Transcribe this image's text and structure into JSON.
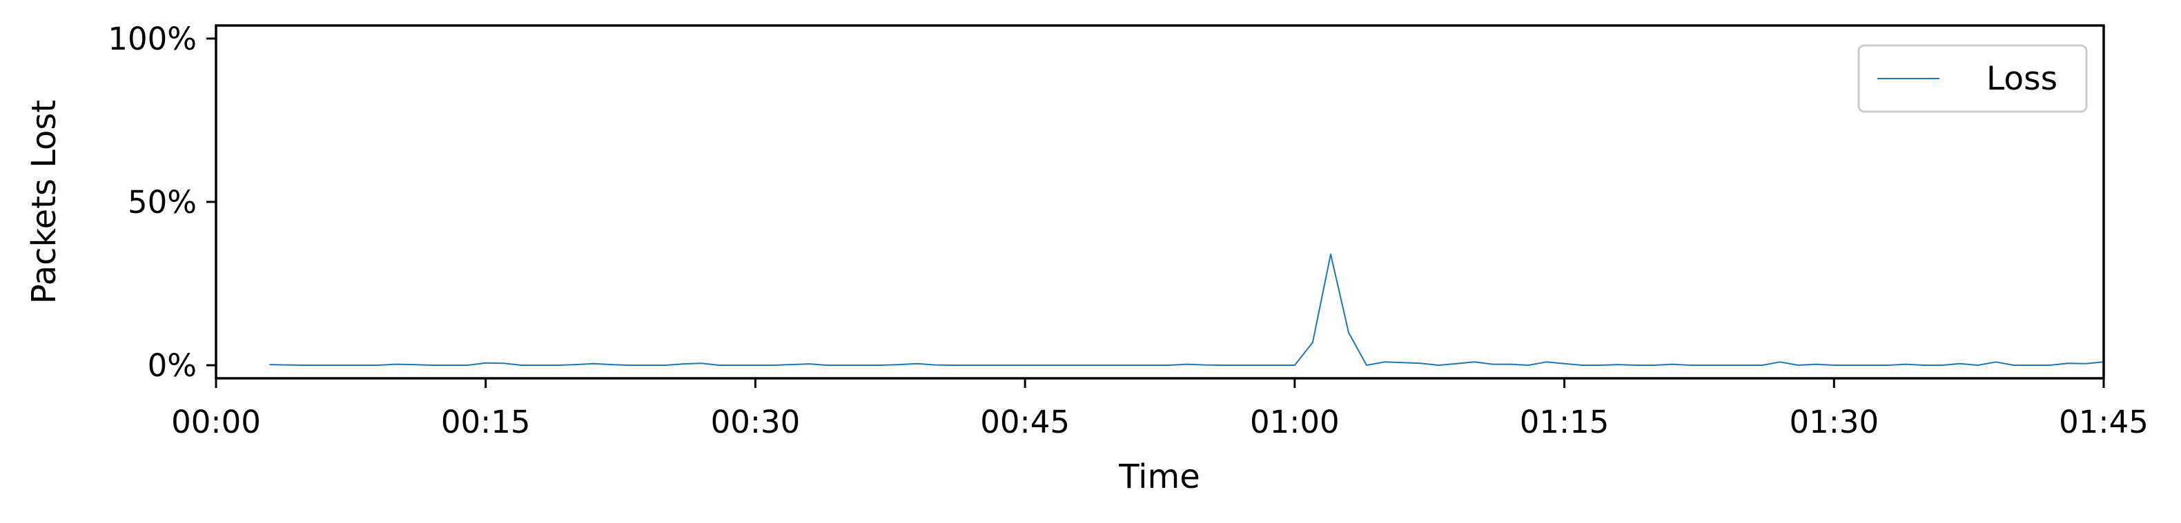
{
  "chart_data": {
    "type": "line",
    "title": "",
    "xlabel": "Time",
    "ylabel": "Packets Lost",
    "x_unit": "minutes",
    "xlim": [
      0,
      105
    ],
    "ylim": [
      -4,
      104
    ],
    "x_ticks": [
      {
        "value": 0,
        "label": "00:00"
      },
      {
        "value": 15,
        "label": "00:15"
      },
      {
        "value": 30,
        "label": "00:30"
      },
      {
        "value": 45,
        "label": "00:45"
      },
      {
        "value": 60,
        "label": "01:00"
      },
      {
        "value": 75,
        "label": "01:15"
      },
      {
        "value": 90,
        "label": "01:30"
      },
      {
        "value": 105,
        "label": "01:45"
      }
    ],
    "y_ticks": [
      {
        "value": 0,
        "label": "0%"
      },
      {
        "value": 50,
        "label": "50%"
      },
      {
        "value": 100,
        "label": "100%"
      }
    ],
    "grid": false,
    "legend": {
      "position": "top-right",
      "entries": [
        "Loss"
      ]
    },
    "series": [
      {
        "name": "Loss",
        "color": "#1f77b4",
        "x": [
          3,
          4,
          5,
          6,
          7,
          8,
          9,
          10,
          11,
          12,
          13,
          14,
          15,
          16,
          17,
          18,
          19,
          20,
          21,
          22,
          23,
          24,
          25,
          26,
          27,
          28,
          29,
          30,
          31,
          32,
          33,
          34,
          35,
          36,
          37,
          38,
          39,
          40,
          41,
          42,
          43,
          44,
          45,
          46,
          47,
          48,
          49,
          50,
          51,
          52,
          53,
          54,
          55,
          56,
          57,
          58,
          59,
          60,
          61,
          62,
          63,
          64,
          65,
          66,
          67,
          68,
          69,
          70,
          71,
          72,
          73,
          74,
          75,
          76,
          77,
          78,
          79,
          80,
          81,
          82,
          83,
          84,
          85,
          86,
          87,
          88,
          89,
          90,
          91,
          92,
          93,
          94,
          95,
          96,
          97,
          98,
          99,
          100,
          101,
          102,
          103,
          104,
          105
        ],
        "values": [
          0.2,
          0.1,
          0,
          0,
          0,
          0,
          0,
          0.3,
          0.2,
          0,
          0,
          0,
          0.7,
          0.6,
          0,
          0,
          0,
          0.2,
          0.5,
          0.2,
          0,
          0,
          0,
          0.4,
          0.6,
          0,
          0,
          0,
          0,
          0.2,
          0.4,
          0,
          0,
          0,
          0,
          0.2,
          0.5,
          0.1,
          0,
          0,
          0,
          0,
          0,
          0,
          0,
          0,
          0,
          0,
          0,
          0,
          0,
          0.3,
          0.1,
          0,
          0,
          0,
          0,
          0,
          7,
          34,
          10,
          0,
          1,
          0.8,
          0.6,
          0,
          0.5,
          1,
          0.3,
          0.3,
          0,
          1,
          0.5,
          0,
          0,
          0.2,
          0,
          0,
          0.3,
          0,
          0,
          0,
          0,
          0,
          1,
          0,
          0.3,
          0,
          0,
          0,
          0,
          0.3,
          0,
          0,
          0.5,
          0,
          1,
          0,
          0,
          0,
          0.6,
          0.5,
          1
        ]
      }
    ]
  }
}
